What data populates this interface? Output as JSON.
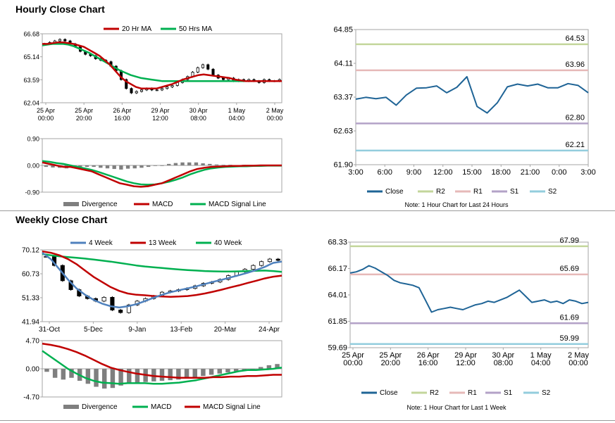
{
  "sections": {
    "hourly_title": "Hourly Close Chart",
    "weekly_title": "Weekly Close Chart"
  },
  "colors": {
    "ma20": "#c00000",
    "ma50": "#00b050",
    "close": "#1f6496",
    "r2": "#c3d69b",
    "r1": "#e6b9b8",
    "s1": "#b3a2c7",
    "s2": "#93cddd",
    "w4": "#4f81bd",
    "w13": "#c00000",
    "w40": "#00b050",
    "divergence": "#7f7f7f",
    "price": "#000000"
  },
  "chart_data": [
    {
      "id": "hourly-price",
      "type": "candlestick",
      "title": "",
      "ylim": [
        62.04,
        66.68
      ],
      "yticks": [
        "66.68",
        "65.14",
        "63.59",
        "62.04"
      ],
      "xticks": [
        "25 Apr\n00:00",
        "25 Apr\n20:00",
        "26 Apr\n16:00",
        "29 Apr\n12:00",
        "30 Apr\n08:00",
        "1 May\n04:00",
        "2 May\n00:00"
      ],
      "legend": [
        "20 Hr MA",
        "50 Hrs MA"
      ],
      "close": [
        66.0,
        66.1,
        66.2,
        66.3,
        66.2,
        66.0,
        65.8,
        65.5,
        65.3,
        65.2,
        65.0,
        64.9,
        64.8,
        64.5,
        64.2,
        63.6,
        63.0,
        62.7,
        62.8,
        62.9,
        63.0,
        62.9,
        62.9,
        63.0,
        63.1,
        63.2,
        63.4,
        63.6,
        63.8,
        64.1,
        64.4,
        64.6,
        64.3,
        63.9,
        63.7,
        63.6,
        63.7,
        63.5,
        63.6,
        63.5,
        63.6,
        63.5,
        63.4,
        63.6,
        63.5,
        63.5,
        63.6
      ],
      "ma20": [
        66.0,
        66.0,
        66.05,
        66.1,
        66.1,
        66.05,
        66.0,
        65.9,
        65.8,
        65.6,
        65.4,
        65.2,
        64.9,
        64.6,
        64.2,
        63.8,
        63.5,
        63.3,
        63.1,
        63.0,
        63.0,
        63.0,
        63.0,
        63.1,
        63.2,
        63.3,
        63.45,
        63.6,
        63.7,
        63.8,
        63.9,
        63.95,
        63.9,
        63.85,
        63.8,
        63.75,
        63.7,
        63.6,
        63.55,
        63.5,
        63.5,
        63.5,
        63.5,
        63.5,
        63.5,
        63.5,
        63.5
      ],
      "ma50": [
        65.9,
        65.95,
        66.0,
        66.0,
        66.0,
        65.95,
        65.85,
        65.7,
        65.55,
        65.4,
        65.2,
        65.0,
        64.8,
        64.6,
        64.4,
        64.2,
        64.05,
        63.9,
        63.8,
        63.7,
        63.65,
        63.6,
        63.55,
        63.5,
        63.5,
        63.5,
        63.5,
        63.5,
        63.5,
        63.5,
        63.5,
        63.5,
        63.5,
        63.5,
        63.5,
        63.5,
        63.5,
        63.5,
        63.5,
        63.5,
        63.5,
        63.5,
        63.5,
        63.5,
        63.5,
        63.5,
        63.5
      ]
    },
    {
      "id": "hourly-macd",
      "type": "bar+line",
      "ylim": [
        -0.9,
        0.9
      ],
      "yticks": [
        "0.90",
        "0.00",
        "-0.90"
      ],
      "legend": [
        "Divergence",
        "MACD",
        "MACD Signal Line"
      ],
      "macd": [
        0.1,
        0.05,
        0.0,
        -0.05,
        -0.05,
        -0.1,
        -0.15,
        -0.2,
        -0.3,
        -0.4,
        -0.5,
        -0.6,
        -0.65,
        -0.7,
        -0.72,
        -0.7,
        -0.65,
        -0.6,
        -0.5,
        -0.4,
        -0.3,
        -0.2,
        -0.12,
        -0.08,
        -0.05,
        -0.04,
        -0.03,
        -0.02,
        -0.02,
        -0.01,
        -0.01,
        0.0,
        0.0,
        0.0,
        0.0
      ],
      "signal": [
        0.15,
        0.12,
        0.08,
        0.05,
        0.0,
        -0.05,
        -0.1,
        -0.15,
        -0.22,
        -0.3,
        -0.38,
        -0.46,
        -0.54,
        -0.6,
        -0.64,
        -0.65,
        -0.64,
        -0.6,
        -0.55,
        -0.48,
        -0.4,
        -0.3,
        -0.22,
        -0.15,
        -0.1,
        -0.07,
        -0.05,
        -0.04,
        -0.03,
        -0.03,
        -0.02,
        -0.02,
        -0.01,
        -0.01,
        -0.01
      ],
      "divergence": [
        -0.05,
        -0.07,
        -0.08,
        -0.1,
        -0.05,
        -0.05,
        -0.05,
        -0.05,
        -0.08,
        -0.1,
        -0.12,
        -0.14,
        -0.11,
        -0.1,
        -0.08,
        -0.05,
        -0.01,
        0.0,
        0.05,
        0.08,
        0.1,
        0.1,
        0.1,
        0.07,
        0.05,
        0.03,
        0.02,
        0.02,
        0.01,
        0.02,
        0.01,
        0.02,
        0.01,
        0.01,
        0.01
      ]
    },
    {
      "id": "hourly-levels",
      "type": "line",
      "ylim": [
        61.9,
        64.85
      ],
      "yticks": [
        "64.85",
        "64.11",
        "63.37",
        "62.63",
        "61.90"
      ],
      "xticks": [
        "3:00",
        "6:00",
        "9:00",
        "12:00",
        "15:00",
        "18:00",
        "21:00",
        "0:00",
        "3:00"
      ],
      "legend": [
        "Close",
        "R2",
        "R1",
        "S1",
        "S2"
      ],
      "note": "Note: 1 Hour Chart for Last 24 Hours",
      "close": [
        63.33,
        63.37,
        63.34,
        63.37,
        63.2,
        63.42,
        63.57,
        63.58,
        63.62,
        63.47,
        63.59,
        63.82,
        63.17,
        63.03,
        63.25,
        63.6,
        63.66,
        63.62,
        63.66,
        63.58,
        63.58,
        63.67,
        63.63,
        63.47
      ],
      "levels": {
        "R2": 64.53,
        "R1": 63.96,
        "S1": 62.8,
        "S2": 62.21
      },
      "level_labels": {
        "R2": "64.53",
        "R1": "63.96",
        "S1": "62.80",
        "S2": "62.21"
      }
    },
    {
      "id": "weekly-price",
      "type": "candlestick",
      "ylim": [
        41.94,
        70.12
      ],
      "yticks": [
        "70.12",
        "60.73",
        "51.33",
        "41.94"
      ],
      "xticks": [
        "31-Oct",
        "5-Dec",
        "9-Jan",
        "13-Feb",
        "20-Mar",
        "24-Apr"
      ],
      "legend": [
        "4 Week",
        "13 Week",
        "40 Week"
      ],
      "close": [
        67.5,
        64.0,
        58.0,
        54.5,
        52.0,
        51.0,
        50.0,
        51.5,
        46.5,
        45.5,
        48.5,
        50.0,
        51.0,
        52.0,
        53.5,
        54.0,
        54.5,
        55.0,
        56.0,
        57.0,
        57.5,
        58.5,
        60.0,
        61.5,
        62.5,
        64.0,
        65.5,
        66.5,
        66.0
      ],
      "w4": [
        69.0,
        66.5,
        62.5,
        58.5,
        55.0,
        52.5,
        50.5,
        49.0,
        48.0,
        47.5,
        48.0,
        48.8,
        50.0,
        51.3,
        52.5,
        53.5,
        54.3,
        55.0,
        55.8,
        56.7,
        57.6,
        58.4,
        59.3,
        60.2,
        61.1,
        62.2,
        63.4,
        65.0,
        65.5
      ],
      "w13": [
        69.5,
        69.0,
        68.0,
        66.5,
        64.5,
        62.0,
        59.5,
        57.5,
        55.5,
        54.0,
        53.0,
        52.5,
        52.3,
        52.0,
        51.8,
        51.7,
        51.8,
        52.0,
        52.4,
        53.0,
        53.7,
        54.5,
        55.4,
        56.2,
        57.1,
        58.0,
        58.9,
        59.6,
        60.0
      ],
      "w40": [
        68.5,
        68.0,
        67.6,
        67.3,
        67.0,
        66.7,
        66.3,
        65.9,
        65.5,
        65.0,
        64.5,
        64.0,
        63.6,
        63.3,
        63.0,
        62.7,
        62.4,
        62.2,
        62.0,
        61.8,
        61.7,
        61.6,
        61.6,
        61.7,
        61.8,
        61.9,
        62.0,
        61.8,
        61.5
      ]
    },
    {
      "id": "weekly-macd",
      "type": "bar+line",
      "ylim": [
        -4.7,
        4.7
      ],
      "yticks": [
        "4.70",
        "0.00",
        "-4.70"
      ],
      "legend": [
        "Divergence",
        "MACD",
        "MACD Signal Line"
      ],
      "macd": [
        3.0,
        2.0,
        1.0,
        0.0,
        -0.8,
        -1.5,
        -2.0,
        -2.3,
        -2.4,
        -2.5,
        -2.4,
        -2.4,
        -2.4,
        -2.5,
        -2.5,
        -2.4,
        -2.3,
        -2.1,
        -1.9,
        -1.6,
        -1.3,
        -1.0,
        -0.7,
        -0.4,
        -0.2,
        -0.2,
        -0.1,
        0.0,
        0.2
      ],
      "signal": [
        4.2,
        4.0,
        3.7,
        3.3,
        2.8,
        2.2,
        1.5,
        0.8,
        0.2,
        -0.2,
        -0.5,
        -0.8,
        -1.0,
        -1.2,
        -1.3,
        -1.4,
        -1.5,
        -1.5,
        -1.5,
        -1.5,
        -1.4,
        -1.4,
        -1.3,
        -1.3,
        -1.2,
        -1.2,
        -1.1,
        -1.0,
        -1.0
      ],
      "divergence": [
        -0.5,
        -1.5,
        -1.8,
        -1.5,
        -2.0,
        -2.5,
        -3.0,
        -3.3,
        -3.2,
        -2.8,
        -2.5,
        -2.3,
        -2.2,
        -2.1,
        -2.0,
        -1.9,
        -1.8,
        -1.6,
        -1.4,
        -1.2,
        -1.0,
        -0.8,
        -0.6,
        -0.4,
        -0.2,
        0.0,
        0.3,
        0.6,
        0.8
      ]
    },
    {
      "id": "weekly-levels",
      "type": "line",
      "ylim": [
        59.69,
        68.33
      ],
      "yticks": [
        "68.33",
        "66.17",
        "64.01",
        "61.85",
        "59.69"
      ],
      "xticks": [
        "25 Apr\n00:00",
        "25 Apr\n20:00",
        "26 Apr\n16:00",
        "29 Apr\n12:00",
        "30 Apr\n08:00",
        "1 May\n04:00",
        "2 May\n00:00"
      ],
      "legend": [
        "Close",
        "R2",
        "R1",
        "S1",
        "S2"
      ],
      "note": "Note: 1 Hour Chart for Last 1 Week",
      "close": [
        65.8,
        65.9,
        66.1,
        66.4,
        66.2,
        65.9,
        65.6,
        65.2,
        65.0,
        64.9,
        64.8,
        64.6,
        63.6,
        62.6,
        62.8,
        62.9,
        63.0,
        62.9,
        62.8,
        63.0,
        63.2,
        63.3,
        63.5,
        63.4,
        63.6,
        63.8,
        64.1,
        64.4,
        63.9,
        63.4,
        63.5,
        63.6,
        63.4,
        63.5,
        63.3,
        63.6,
        63.5,
        63.3,
        63.4
      ],
      "levels": {
        "R2": 67.99,
        "R1": 65.69,
        "S1": 61.69,
        "S2": 59.99
      },
      "level_labels": {
        "R2": "67.99",
        "R1": "65.69",
        "S1": "61.69",
        "S2": "59.99"
      }
    }
  ]
}
